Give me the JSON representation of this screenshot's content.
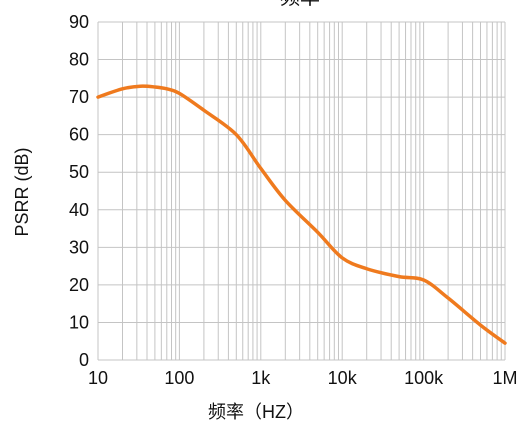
{
  "chart_data": {
    "type": "line",
    "title": "频率",
    "xlabel": "频率（HZ）",
    "ylabel": "PSRR (dB)",
    "xscale": "log",
    "xlim": [
      10,
      1000000
    ],
    "ylim": [
      0,
      90
    ],
    "xticks": [
      10,
      100,
      1000,
      10000,
      100000,
      1000000
    ],
    "xtick_labels": [
      "10",
      "100",
      "1k",
      "10k",
      "100k",
      "1M"
    ],
    "yticks": [
      0,
      10,
      20,
      30,
      40,
      50,
      60,
      70,
      80,
      90
    ],
    "ytick_labels": [
      "0",
      "10",
      "20",
      "30",
      "40",
      "50",
      "60",
      "70",
      "80",
      "90"
    ],
    "grid": true,
    "grid_color": "#c4c4c4",
    "series": [
      {
        "color": "#EF7A1E",
        "x": [
          10,
          20,
          33,
          50,
          70,
          100,
          200,
          500,
          1000,
          2000,
          5000,
          10000,
          20000,
          50000,
          100000,
          200000,
          500000,
          1000000
        ],
        "y": [
          70,
          72.2,
          72.9,
          72.7,
          72.2,
          71,
          66.5,
          60,
          51,
          42.5,
          34,
          27.2,
          24.3,
          22.2,
          21.3,
          16.5,
          9.3,
          4.5
        ]
      }
    ]
  }
}
